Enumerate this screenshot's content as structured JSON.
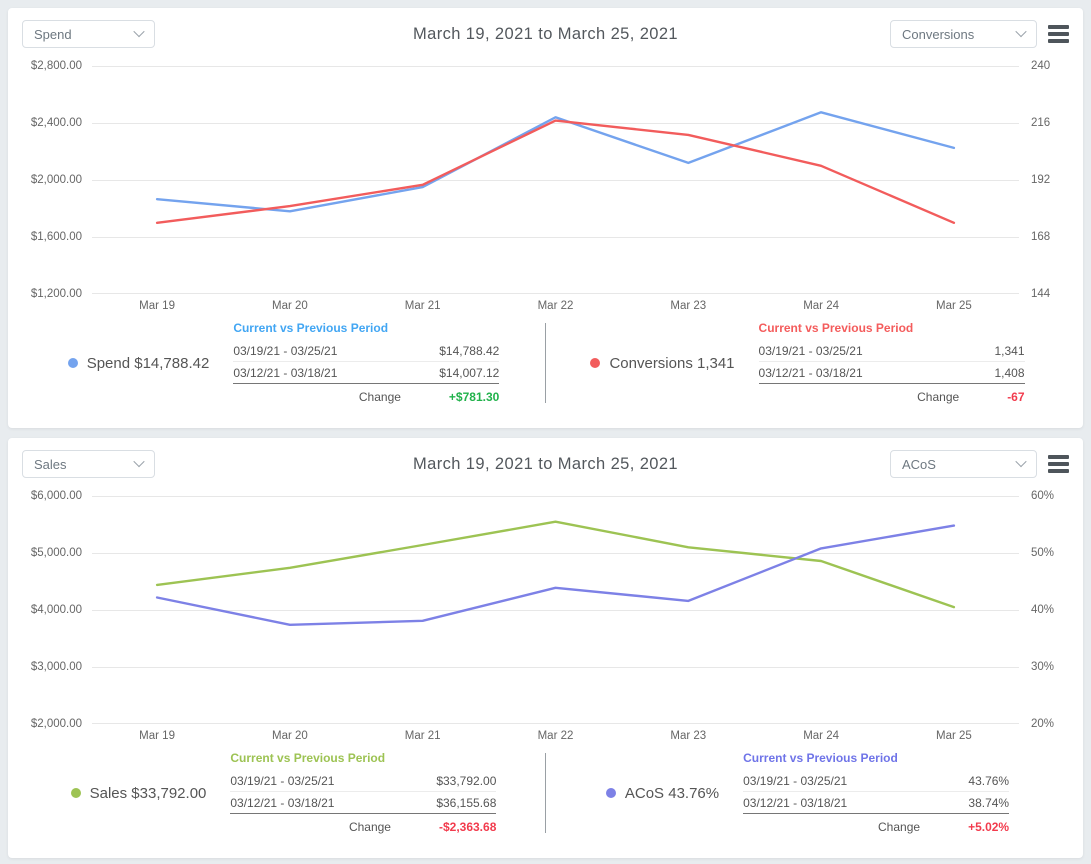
{
  "chart_data": [
    {
      "type": "line",
      "title": "March 19, 2021 to March 25, 2021",
      "categories": [
        "Mar 19",
        "Mar 20",
        "Mar 21",
        "Mar 22",
        "Mar 23",
        "Mar 24",
        "Mar 25"
      ],
      "series": [
        {
          "name": "Spend",
          "axis": "left",
          "color": "#74a3ee",
          "values": [
            1865,
            1780,
            1950,
            2440,
            2120,
            2475,
            2225
          ]
        },
        {
          "name": "Conversions",
          "axis": "right",
          "color": "#f25c5c",
          "values": [
            174,
            181,
            190,
            217,
            211,
            198,
            174
          ]
        }
      ],
      "left_axis": {
        "min": 1200,
        "max": 2800,
        "ticks": [
          "$2,800.00",
          "$2,400.00",
          "$2,000.00",
          "$1,600.00",
          "$1,200.00"
        ]
      },
      "right_axis": {
        "min": 144,
        "max": 240,
        "ticks": [
          "240",
          "216",
          "192",
          "168",
          "144"
        ]
      },
      "grid": true,
      "legend_position": "bottom"
    },
    {
      "type": "line",
      "title": "March 19, 2021 to March 25, 2021",
      "categories": [
        "Mar 19",
        "Mar 20",
        "Mar 21",
        "Mar 22",
        "Mar 23",
        "Mar 24",
        "Mar 25"
      ],
      "series": [
        {
          "name": "Sales",
          "axis": "left",
          "color": "#9dc353",
          "values": [
            4440,
            4740,
            5140,
            5550,
            5100,
            4860,
            4050
          ]
        },
        {
          "name": "ACoS",
          "axis": "right",
          "color": "#7d81e6",
          "values": [
            42.2,
            37.4,
            38.1,
            43.9,
            41.6,
            50.8,
            54.8
          ]
        }
      ],
      "left_axis": {
        "min": 2000,
        "max": 6000,
        "ticks": [
          "$6,000.00",
          "$5,000.00",
          "$4,000.00",
          "$3,000.00",
          "$2,000.00"
        ]
      },
      "right_axis": {
        "min": 20,
        "max": 60,
        "ticks": [
          "60%",
          "50%",
          "40%",
          "30%",
          "20%"
        ]
      },
      "grid": true,
      "legend_position": "bottom"
    }
  ],
  "panels": [
    {
      "left_dropdown": "Spend",
      "right_dropdown": "Conversions",
      "title": "March 19, 2021 to March 25, 2021",
      "legend": {
        "left": {
          "dot_color": "#74a3ee",
          "label": "Spend $14,788.42",
          "header": "Current vs Previous Period",
          "header_color": "#42a6f3",
          "rows": [
            {
              "period": "03/19/21 - 03/25/21",
              "value": "$14,788.42"
            },
            {
              "period": "03/12/21 - 03/18/21",
              "value": "$14,007.12"
            }
          ],
          "change_label": "Change",
          "change_value": "+$781.30",
          "change_color": "#21b24b"
        },
        "right": {
          "dot_color": "#f25c5c",
          "label": "Conversions 1,341",
          "header": "Current vs Previous Period",
          "header_color": "#f45c5c",
          "rows": [
            {
              "period": "03/19/21 - 03/25/21",
              "value": "1,341"
            },
            {
              "period": "03/12/21 - 03/18/21",
              "value": "1,408"
            }
          ],
          "change_label": "Change",
          "change_value": "-67",
          "change_color": "#f23b4d"
        }
      }
    },
    {
      "left_dropdown": "Sales",
      "right_dropdown": "ACoS",
      "title": "March 19, 2021 to March 25, 2021",
      "legend": {
        "left": {
          "dot_color": "#9dc353",
          "label": "Sales $33,792.00",
          "header": "Current vs Previous Period",
          "header_color": "#9dc353",
          "rows": [
            {
              "period": "03/19/21 - 03/25/21",
              "value": "$33,792.00"
            },
            {
              "period": "03/12/21 - 03/18/21",
              "value": "$36,155.68"
            }
          ],
          "change_label": "Change",
          "change_value": "-$2,363.68",
          "change_color": "#f23b4d"
        },
        "right": {
          "dot_color": "#7d81e6",
          "label": "ACoS 43.76%",
          "header": "Current vs Previous Period",
          "header_color": "#6f74e8",
          "rows": [
            {
              "period": "03/19/21 - 03/25/21",
              "value": "43.76%"
            },
            {
              "period": "03/12/21 - 03/18/21",
              "value": "38.74%"
            }
          ],
          "change_label": "Change",
          "change_value": "+5.02%",
          "change_color": "#f23b4d"
        }
      }
    }
  ]
}
